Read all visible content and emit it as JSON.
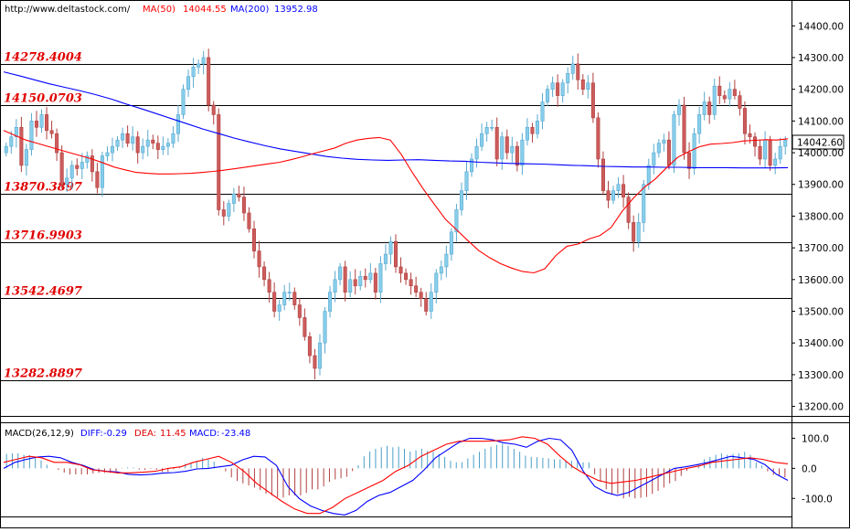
{
  "header": {
    "url": "http://www.deltastock.com/",
    "ma50_label": "MA(50)",
    "ma50_value": "14044.55",
    "ma200_label": "MA(200)",
    "ma200_value": "13952.98"
  },
  "colors": {
    "up_candle": "#87CEEB",
    "down_candle": "#CD5C5C",
    "ma50": "#FF0000",
    "ma200": "#0000FF",
    "grid_line": "#000000",
    "level_label": "#E00000",
    "last_price_box": "#FFFFFF"
  },
  "price_panel": {
    "last_price": "14042.60",
    "levels": [
      {
        "label": "14278.4004",
        "value": 14278.4004
      },
      {
        "label": "14150.0703",
        "value": 14150.0703
      },
      {
        "label": "13870.3897",
        "value": 13870.3897
      },
      {
        "label": "13716.9903",
        "value": 13716.9903
      },
      {
        "label": "13542.4697",
        "value": 13542.4697
      },
      {
        "label": "13282.8897",
        "value": 13282.8897
      }
    ]
  },
  "macd_panel": {
    "title": "MACD(26,12,9)",
    "diff_label": "DIFF:",
    "diff_value": "-0.29",
    "dea_label": "DEA:",
    "dea_value": "11.45",
    "macd_label": "MACD:",
    "macd_value": "-23.48"
  },
  "chart_data": [
    {
      "type": "candlestick",
      "ylim": [
        13170,
        14470
      ],
      "yticks": [
        {
          "label": "14400.00",
          "value": 14400
        },
        {
          "label": "14300.00",
          "value": 14300
        },
        {
          "label": "14200.00",
          "value": 14200
        },
        {
          "label": "14100.00",
          "value": 14100
        },
        {
          "label": "14000.00",
          "value": 14000
        },
        {
          "label": "13900.00",
          "value": 13900
        },
        {
          "label": "13800.00",
          "value": 13800
        },
        {
          "label": "13700.00",
          "value": 13700
        },
        {
          "label": "13600.00",
          "value": 13600
        },
        {
          "label": "13500.00",
          "value": 13500
        },
        {
          "label": "13400.00",
          "value": 13400
        },
        {
          "label": "13300.00",
          "value": 13300
        },
        {
          "label": "13200.00",
          "value": 13200
        }
      ],
      "closes": [
        14020,
        14050,
        14080,
        13960,
        14010,
        14100,
        14080,
        14120,
        14070,
        14060,
        14000,
        13900,
        13920,
        13960,
        13950,
        13970,
        13990,
        13940,
        13890,
        13990,
        14000,
        14020,
        14040,
        14060,
        14030,
        14050,
        14000,
        14020,
        14040,
        14030,
        14010,
        14020,
        14030,
        14060,
        14120,
        14200,
        14240,
        14270,
        14280,
        14300,
        14150,
        14120,
        13820,
        13800,
        13840,
        13870,
        13860,
        13810,
        13760,
        13690,
        13640,
        13600,
        13560,
        13500,
        13520,
        13560,
        13560,
        13520,
        13480,
        13420,
        13360,
        13320,
        13400,
        13500,
        13560,
        13600,
        13640,
        13560,
        13600,
        13580,
        13610,
        13600,
        13620,
        13560,
        13650,
        13680,
        13720,
        13640,
        13620,
        13600,
        13580,
        13560,
        13540,
        13500,
        13560,
        13620,
        13640,
        13680,
        13750,
        13820,
        13880,
        13940,
        13980,
        14020,
        14060,
        14080,
        14080,
        13980,
        14050,
        14000,
        14020,
        13960,
        14040,
        14080,
        14060,
        14100,
        14160,
        14200,
        14220,
        14180,
        14220,
        14250,
        14280,
        14230,
        14200,
        14220,
        14110,
        13980,
        13880,
        13850,
        13880,
        13900,
        13860,
        13780,
        13720,
        13780,
        13900,
        13960,
        14000,
        14030,
        14040,
        13960,
        14120,
        14150,
        14000,
        13950,
        14060,
        14120,
        14160,
        14120,
        14210,
        14180,
        14170,
        14200,
        14180,
        14140,
        14060,
        14050,
        14020,
        13980,
        14040,
        13960,
        13980,
        14020,
        14040
      ],
      "ma50": [
        14070,
        14055,
        14040,
        14030,
        14020,
        14010,
        14000,
        13990,
        13980,
        13968,
        13955,
        13946,
        13938,
        13935,
        13933,
        13933,
        13934,
        13935,
        13938,
        13941,
        13945,
        13950,
        13955,
        13960,
        13965,
        13970,
        13978,
        13987,
        13997,
        14006,
        14015,
        14030,
        14040,
        14045,
        14048,
        14040,
        13995,
        13938,
        13885,
        13837,
        13790,
        13757,
        13724,
        13692,
        13669,
        13650,
        13636,
        13625,
        13621,
        13634,
        13676,
        13705,
        13712,
        13728,
        13739,
        13764,
        13815,
        13856,
        13891,
        13917,
        13952,
        13985,
        14003,
        14019,
        14027,
        14029,
        14032,
        14037,
        14039,
        14041,
        14040,
        14044
      ],
      "ma200": [
        14255,
        14243,
        14230,
        14217,
        14206,
        14195,
        14183,
        14169,
        14153,
        14138,
        14122,
        14106,
        14090,
        14074,
        14060,
        14046,
        14034,
        14022,
        14012,
        14004,
        13996,
        13988,
        13983,
        13979,
        13977,
        13976,
        13977,
        13978,
        13976,
        13974,
        13973,
        13970,
        13968,
        13966,
        13965,
        13964,
        13962,
        13960,
        13959,
        13957,
        13956,
        13955,
        13955,
        13954,
        13954,
        13953,
        13953,
        13953,
        13952,
        13952,
        13952,
        13953
      ]
    },
    {
      "type": "bar",
      "name": "MACD",
      "ylim": [
        -160,
        150
      ],
      "yticks": [
        {
          "label": "100.0",
          "value": 100
        },
        {
          "label": "0.0",
          "value": 0
        },
        {
          "label": "-100.0",
          "value": -100
        }
      ],
      "histogram": [
        48,
        50,
        50,
        45,
        44,
        35,
        27,
        12,
        0,
        -5,
        -14,
        -20,
        -20,
        -20,
        -20,
        -17,
        -15,
        -15,
        -15,
        -9,
        -1,
        3,
        3,
        -4,
        -5,
        -2,
        -5,
        -12,
        -12,
        -3,
        3,
        15,
        20,
        25,
        35,
        30,
        22,
        1,
        -10,
        -30,
        -42,
        -50,
        -57,
        -64,
        -72,
        -84,
        -90,
        -96,
        -97,
        -90,
        -90,
        -90,
        -82,
        -70,
        -70,
        -60,
        -45,
        -37,
        -33,
        -28,
        -9,
        10,
        40,
        56,
        65,
        70,
        75,
        70,
        72,
        65,
        56,
        60,
        65,
        58,
        55,
        48,
        38,
        25,
        20,
        20,
        33,
        45,
        55,
        65,
        72,
        78,
        82,
        75,
        65,
        55,
        42,
        38,
        37,
        35,
        33,
        30,
        30,
        26,
        25,
        22,
        20,
        20,
        -20,
        -45,
        -70,
        -88,
        -85,
        -100,
        -95,
        -100,
        -98,
        -95,
        -85,
        -75,
        -64,
        -50,
        -42,
        -25,
        -8,
        0,
        15,
        30,
        38,
        45,
        50,
        45,
        48,
        50,
        55,
        45,
        20,
        10,
        -10,
        -22,
        -25,
        -30
      ],
      "diff": [
        0,
        20,
        30,
        38,
        40,
        35,
        20,
        10,
        -5,
        -10,
        -12,
        -20,
        -22,
        -20,
        -16,
        -14,
        -10,
        -2,
        0,
        5,
        10,
        28,
        40,
        38,
        10,
        -60,
        -100,
        -125,
        -140,
        -150,
        -155,
        -140,
        -110,
        -90,
        -80,
        -60,
        -40,
        -5,
        35,
        60,
        85,
        100,
        100,
        95,
        85,
        80,
        70,
        90,
        100,
        95,
        60,
        -10,
        -60,
        -80,
        -90,
        -80,
        -60,
        -40,
        -20,
        0,
        5,
        12,
        20,
        30,
        40,
        35,
        30,
        12,
        -20,
        -40
      ],
      "dea": [
        20,
        30,
        40,
        35,
        20,
        20,
        12,
        -5,
        -10,
        -15,
        -15,
        -13,
        -10,
        0,
        5,
        20,
        30,
        40,
        20,
        -10,
        -50,
        -80,
        -110,
        -135,
        -150,
        -150,
        -130,
        -100,
        -80,
        -60,
        -40,
        -10,
        10,
        40,
        60,
        80,
        90,
        90,
        90,
        92,
        95,
        105,
        100,
        80,
        40,
        5,
        -20,
        -40,
        -50,
        -45,
        -40,
        -30,
        -20,
        -10,
        0,
        8,
        20,
        25,
        30,
        35,
        30,
        20,
        15
      ]
    }
  ]
}
